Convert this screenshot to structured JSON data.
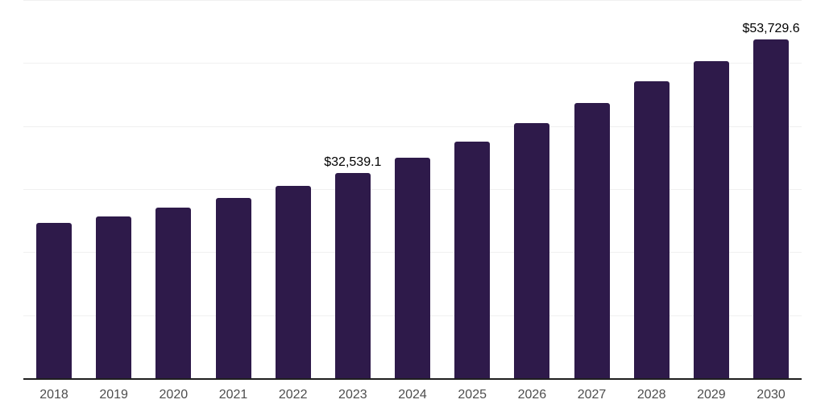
{
  "chart_data": {
    "type": "bar",
    "title": "",
    "xlabel": "",
    "ylabel": "",
    "categories": [
      "2018",
      "2019",
      "2020",
      "2021",
      "2022",
      "2023",
      "2024",
      "2025",
      "2026",
      "2027",
      "2028",
      "2029",
      "2030"
    ],
    "values": [
      24600,
      25650,
      27050,
      28600,
      30450,
      32539.1,
      34950,
      37500,
      40450,
      43700,
      47150,
      50300,
      53729.6
    ],
    "value_labels": [
      "",
      "",
      "",
      "",
      "",
      "$32,539.1",
      "",
      "",
      "",
      "",
      "",
      "",
      "$53,729.6"
    ],
    "ylim": [
      0,
      60000
    ],
    "gridlines": [
      10000,
      20000,
      30000,
      40000,
      50000,
      60000
    ],
    "grid": true,
    "legend": false,
    "colors": {
      "bar": "#2e1a4a",
      "grid": "#f0f0f0",
      "axis": "#1f1f1f",
      "tick_label": "#4d4d4d",
      "value_label": "#000000",
      "background": "#ffffff"
    }
  }
}
